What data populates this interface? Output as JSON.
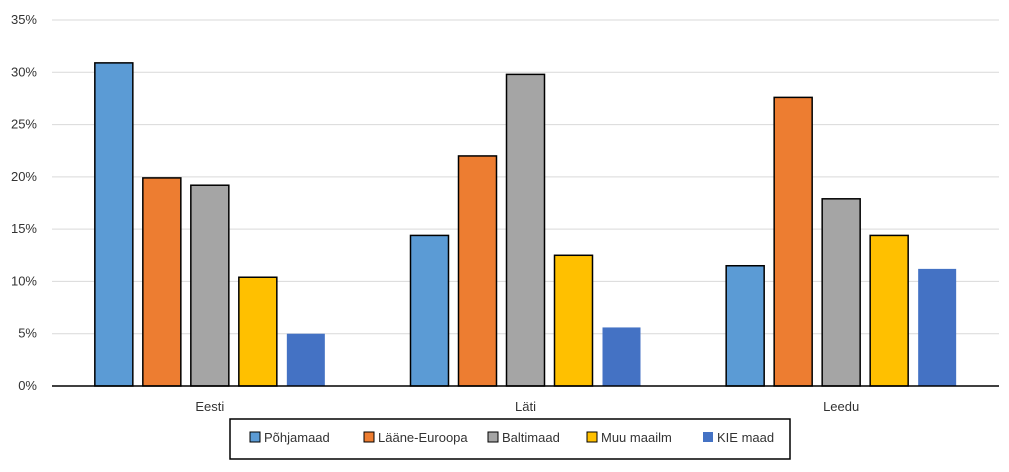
{
  "chart_data": {
    "type": "bar",
    "title": "",
    "xlabel": "",
    "ylabel": "",
    "ylim": [
      0,
      0.35
    ],
    "y_ticks": [
      0,
      0.05,
      0.1,
      0.15,
      0.2,
      0.25,
      0.3,
      0.35
    ],
    "y_tick_labels": [
      "0%",
      "5%",
      "10%",
      "15%",
      "20%",
      "25%",
      "30%",
      "35%"
    ],
    "grid": true,
    "legend_position": "bottom",
    "categories": [
      "Eesti",
      "Läti",
      "Leedu"
    ],
    "series": [
      {
        "name": "Põhjamaad",
        "color": "#5B9BD5",
        "values": [
          0.309,
          0.144,
          0.115
        ]
      },
      {
        "name": "Lääne-Euroopa",
        "color": "#ED7D31",
        "values": [
          0.199,
          0.22,
          0.276
        ]
      },
      {
        "name": "Baltimaad",
        "color": "#A5A5A5",
        "values": [
          0.192,
          0.298,
          0.179
        ]
      },
      {
        "name": "Muu maailm",
        "color": "#FFC000",
        "values": [
          0.104,
          0.125,
          0.144
        ]
      },
      {
        "name": "KIE maad",
        "color": "#4472C4",
        "values": [
          0.05,
          0.056,
          0.112
        ]
      }
    ]
  }
}
